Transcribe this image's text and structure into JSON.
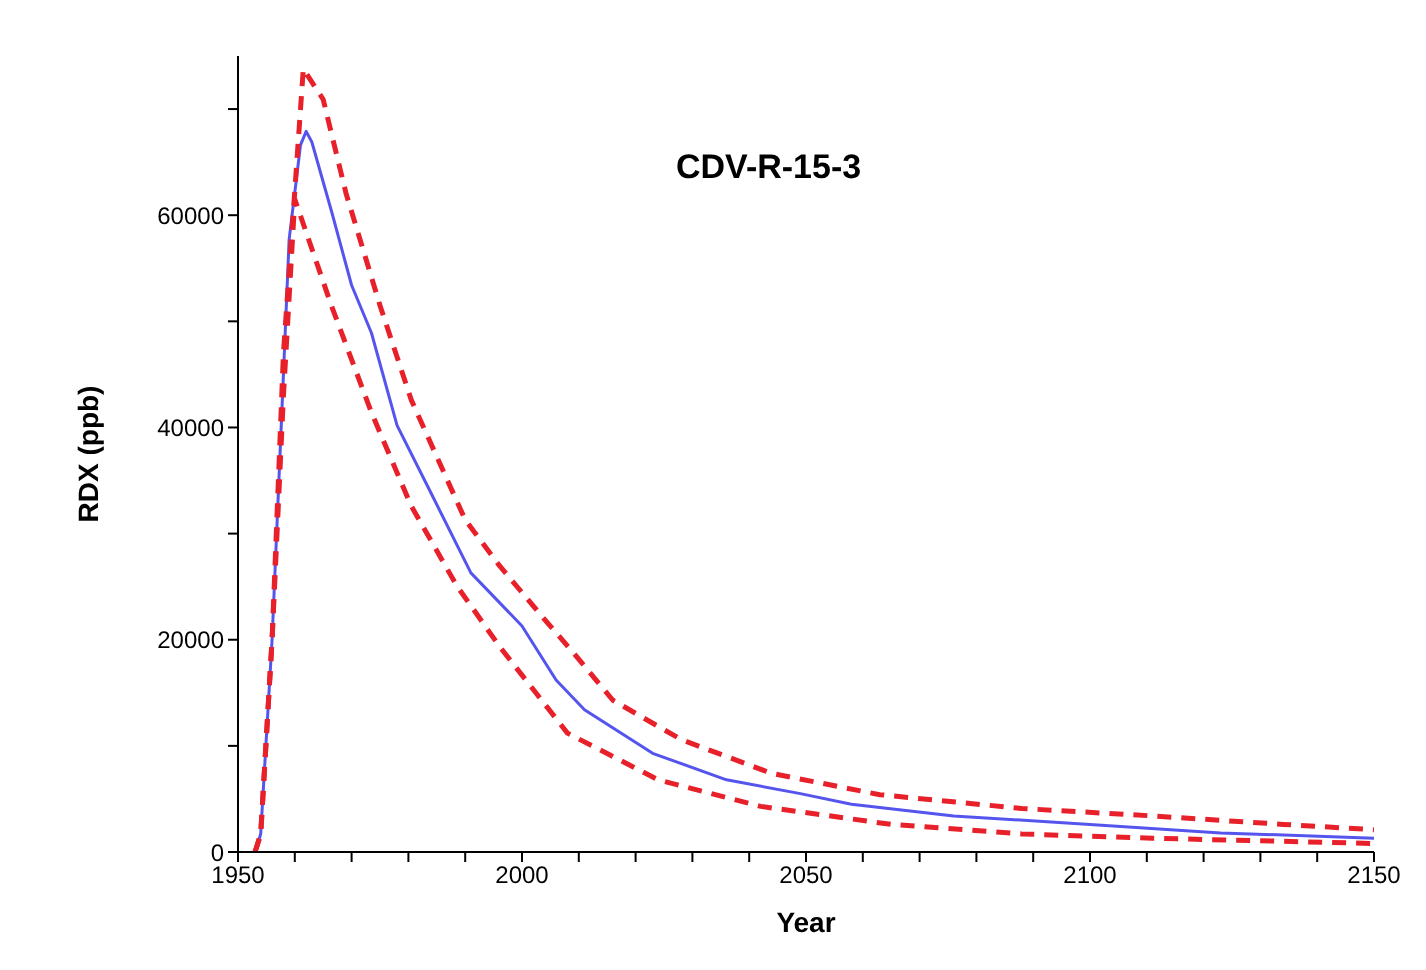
{
  "chart_data": {
    "type": "line",
    "title": "CDV-R-15-3",
    "xlabel": "Year",
    "ylabel": "RDX (ppb)",
    "xlim": [
      1950,
      2150
    ],
    "ylim": [
      0,
      75000
    ],
    "xticks": [
      1950,
      {
        "value": 1960,
        "label": null
      },
      {
        "value": 1970,
        "label": null
      },
      {
        "value": 1980,
        "label": null
      },
      {
        "value": 1990,
        "label": null
      },
      2000,
      {
        "value": 2010,
        "label": null
      },
      {
        "value": 2020,
        "label": null
      },
      {
        "value": 2030,
        "label": null
      },
      {
        "value": 2040,
        "label": null
      },
      2050,
      {
        "value": 2060,
        "label": null
      },
      {
        "value": 2070,
        "label": null
      },
      {
        "value": 2080,
        "label": null
      },
      {
        "value": 2090,
        "label": null
      },
      2100,
      {
        "value": 2110,
        "label": null
      },
      {
        "value": 2120,
        "label": null
      },
      {
        "value": 2130,
        "label": null
      },
      {
        "value": 2140,
        "label": null
      },
      2150
    ],
    "yticks": [
      0,
      {
        "value": 10000,
        "label": null
      },
      20000,
      {
        "value": 30000,
        "label": null
      },
      40000,
      {
        "value": 50000,
        "label": null
      },
      60000,
      {
        "value": 70000,
        "label": null
      }
    ],
    "grid": false,
    "legend": false,
    "marker": "none",
    "series": [
      {
        "color": "#5555ee",
        "line_style": "solid",
        "x": [
          1953,
          1954,
          1956,
          1958,
          1959,
          1961,
          1962,
          1963,
          1966.5,
          1970,
          1973.5,
          1978,
          1984,
          1991,
          2000,
          2006,
          2011,
          2023,
          2036,
          2049,
          2058,
          2076,
          2100,
          2123,
          2150
        ],
        "values": [
          0,
          1700,
          20000,
          45000,
          57700,
          66600,
          67900,
          66900,
          60300,
          53400,
          48900,
          40200,
          33800,
          26300,
          21300,
          16200,
          13400,
          9300,
          6800,
          5500,
          4500,
          3400,
          2600,
          1800,
          1300
        ]
      },
      {
        "color": "#e8202a",
        "line_style": "dashed",
        "x": [
          1953,
          1954,
          1956,
          1958,
          1961.5,
          1965,
          1969,
          1975,
          1980.5,
          1990,
          1996,
          2004,
          2009,
          2016,
          2028,
          2044,
          2063,
          2088,
          2111,
          2134,
          2150
        ],
        "values": [
          0,
          1700,
          20000,
          47000,
          73800,
          70900,
          62100,
          51500,
          42600,
          31300,
          27000,
          21900,
          18800,
          14300,
          10600,
          7400,
          5400,
          4100,
          3400,
          2600,
          2100
        ]
      },
      {
        "color": "#e8202a",
        "line_style": "dashed",
        "x": [
          1953,
          1954,
          1956,
          1958,
          1960,
          1966.5,
          1973.5,
          1980.5,
          1988.5,
          1996,
          2008,
          2024,
          2042,
          2065,
          2088,
          2111,
          2150
        ],
        "values": [
          0,
          1700,
          20000,
          43000,
          61500,
          51400,
          41400,
          32600,
          25100,
          19400,
          11200,
          6800,
          4300,
          2600,
          1700,
          1300,
          800
        ]
      }
    ]
  }
}
